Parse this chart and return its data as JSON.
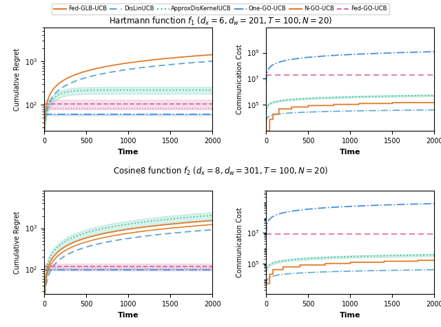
{
  "title1": "Hartmann function $f_1$ $(d_x = 6, d_w = 201, T = 100, N = 20)$",
  "title2": "Cosine8 function $f_2$ $(d_x = 8, d_w = 301, T = 100, N = 20)$",
  "ylabel_regret": "Cumulative Regret",
  "ylabel_comm": "Communication Cost",
  "xlabel": "Time",
  "col_fedglb": "#e07b2a",
  "col_dislin": "#5ba4d4",
  "col_approx": "#3dbf9e",
  "col_onego": "#5ba4d4",
  "col_ngo": "#e07b2a",
  "col_fedgo": "#d966a0",
  "legend_labels": [
    "Fed-GLB-UCB",
    "DisLinUCB",
    "ApproxDisKernelUCB",
    "One-GO-UCB",
    "N-GO-UCB",
    "Fed-GO-UCB"
  ]
}
